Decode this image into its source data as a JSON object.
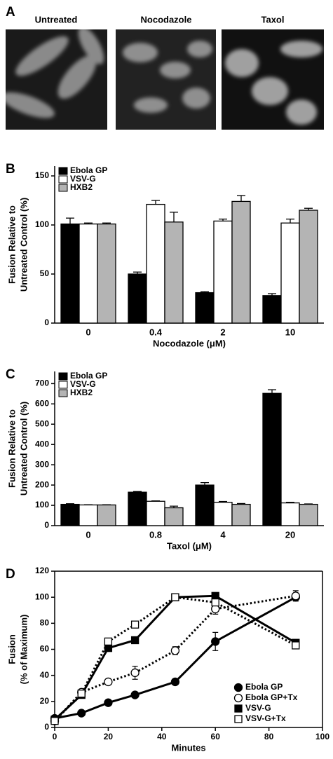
{
  "panel_a": {
    "letter": "A",
    "labels": [
      "Untreated",
      "Nocodazole",
      "Taxol"
    ]
  },
  "chart_data": [
    {
      "type": "bar",
      "panel_label": "B",
      "categories": [
        "0",
        "0.4",
        "2",
        "10"
      ],
      "x_label": "Nocodazole (μM)",
      "y_label": [
        "Fusion Relative to",
        "Untreated Control (%)"
      ],
      "ylim": [
        0,
        160
      ],
      "yticks": [
        0,
        50,
        100,
        150
      ],
      "legend": "upper left",
      "series": [
        {
          "name": "Ebola GP",
          "color": "#000000",
          "values": [
            101,
            50,
            31,
            28
          ],
          "errors": [
            6,
            2,
            1,
            2
          ]
        },
        {
          "name": "VSV-G",
          "color": "#ffffff",
          "values": [
            101,
            121,
            104,
            102
          ],
          "errors": [
            1,
            4,
            2,
            4
          ]
        },
        {
          "name": "HXB2",
          "color": "#b4b4b4",
          "values": [
            101,
            103,
            124,
            115
          ],
          "errors": [
            1,
            10,
            6,
            2
          ]
        }
      ]
    },
    {
      "type": "bar",
      "panel_label": "C",
      "categories": [
        "0",
        "0.8",
        "4",
        "20"
      ],
      "x_label": "Taxol (μM)",
      "y_label": [
        "Fusion Relative to",
        "Untreated Control (%)"
      ],
      "ylim": [
        0,
        760
      ],
      "yticks": [
        0,
        100,
        200,
        300,
        400,
        500,
        600,
        700
      ],
      "legend": "upper left",
      "series": [
        {
          "name": "Ebola GP",
          "color": "#000000",
          "values": [
            105,
            165,
            200,
            652
          ],
          "errors": [
            3,
            3,
            12,
            18
          ]
        },
        {
          "name": "VSV-G",
          "color": "#ffffff",
          "values": [
            102,
            120,
            115,
            112
          ],
          "errors": [
            1,
            2,
            4,
            3
          ]
        },
        {
          "name": "HXB2",
          "color": "#b4b4b4",
          "values": [
            102,
            88,
            105,
            105
          ],
          "errors": [
            1,
            8,
            4,
            2
          ]
        }
      ]
    },
    {
      "type": "line",
      "panel_label": "D",
      "x_label": "Minutes",
      "y_label": [
        "Fusion",
        "(% of Maximum)"
      ],
      "xlim": [
        0,
        100
      ],
      "xticks": [
        0,
        20,
        40,
        60,
        80,
        100
      ],
      "ylim": [
        0,
        120
      ],
      "yticks": [
        0,
        20,
        40,
        60,
        80,
        100,
        120
      ],
      "legend": "lower right",
      "series": [
        {
          "name": "Ebola GP",
          "color": "#000000",
          "marker": "circle",
          "marker_fill": "#000000",
          "line_style": "solid",
          "x": [
            0,
            10,
            20,
            30,
            45,
            60,
            90
          ],
          "values": [
            7,
            11,
            19,
            25,
            35,
            66,
            100
          ],
          "errors": [
            1,
            1,
            1,
            1,
            1,
            7,
            2
          ]
        },
        {
          "name": "Ebola GP+Tx",
          "color": "#000000",
          "marker": "circle",
          "marker_fill": "#ffffff",
          "line_style": "dotted",
          "x": [
            0,
            10,
            20,
            30,
            45,
            60,
            90
          ],
          "values": [
            5,
            27,
            35,
            42,
            59,
            91,
            101
          ],
          "errors": [
            1,
            2,
            2,
            5,
            3,
            4,
            4
          ]
        },
        {
          "name": "VSV-G",
          "color": "#000000",
          "marker": "square",
          "marker_fill": "#000000",
          "line_style": "solid",
          "x": [
            0,
            10,
            20,
            30,
            45,
            60,
            90
          ],
          "values": [
            6,
            25,
            61,
            67,
            100,
            101,
            65
          ],
          "errors": [
            1,
            1,
            1,
            1,
            1,
            1,
            2
          ]
        },
        {
          "name": "VSV-G+Tx",
          "color": "#000000",
          "marker": "square",
          "marker_fill": "#ffffff",
          "line_style": "dotted",
          "x": [
            0,
            10,
            20,
            30,
            45,
            60,
            90
          ],
          "values": [
            5,
            26,
            66,
            79,
            100,
            96,
            63
          ],
          "errors": [
            1,
            1,
            1,
            1,
            1,
            1,
            1
          ]
        }
      ]
    }
  ]
}
